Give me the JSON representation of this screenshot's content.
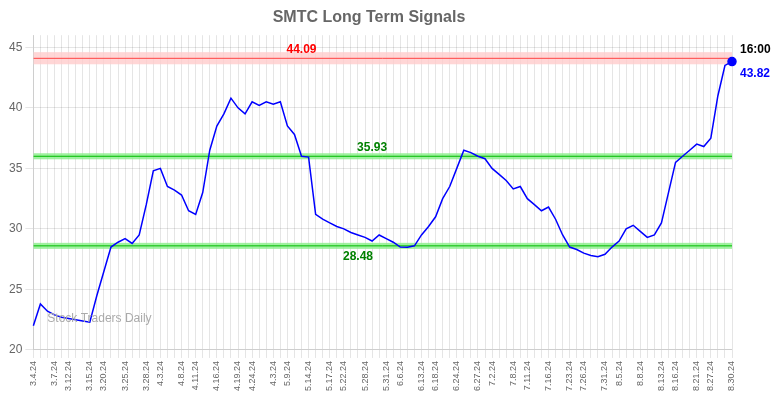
{
  "chart_data": {
    "type": "line",
    "title": "SMTC Long Term Signals",
    "categories": [
      "3.4.24",
      null,
      null,
      "3.7.24",
      null,
      "3.12.24",
      null,
      null,
      "3.15.24",
      null,
      "3.20.24",
      null,
      null,
      "3.25.24",
      null,
      null,
      "3.28.24",
      null,
      "4.3.24",
      null,
      null,
      "4.8.24",
      null,
      "4.11.24",
      null,
      null,
      "4.16.24",
      null,
      null,
      "4.19.24",
      null,
      "4.24.24",
      null,
      null,
      "4.3.24",
      null,
      "5.9.24",
      null,
      null,
      "5.14.24",
      null,
      null,
      "5.17.24",
      null,
      "5.22.24",
      null,
      null,
      "5.28.24",
      null,
      null,
      "5.31.24",
      null,
      "6.6.24",
      null,
      null,
      "6.13.24",
      null,
      "6.18.24",
      null,
      null,
      "6.24.24",
      null,
      null,
      "6.27.24",
      null,
      "7.2.24",
      null,
      null,
      "7.8.24",
      null,
      "7.11.24",
      null,
      null,
      "7.16.24",
      null,
      null,
      "7.23.24",
      null,
      "7.26.24",
      null,
      null,
      "7.31.24",
      null,
      "8.5.24",
      null,
      null,
      "8.8.24",
      null,
      null,
      "8.13.24",
      null,
      "8.16.24",
      null,
      null,
      "8.21.24",
      null,
      "8.27.24",
      null,
      null,
      "8.30.24"
    ],
    "values": [
      22.0,
      23.8,
      23.2,
      22.9,
      22.7,
      22.6,
      22.5,
      22.4,
      22.3,
      24.5,
      26.5,
      28.5,
      28.9,
      29.2,
      28.8,
      29.5,
      32.0,
      34.8,
      35.0,
      33.5,
      33.2,
      32.8,
      31.5,
      31.2,
      33.0,
      36.5,
      38.5,
      39.5,
      40.8,
      40.0,
      39.5,
      40.5,
      40.2,
      40.5,
      40.3,
      40.5,
      38.5,
      37.8,
      36.0,
      35.93,
      31.2,
      30.8,
      30.5,
      30.2,
      30.0,
      29.7,
      29.5,
      29.3,
      29.0,
      29.5,
      29.2,
      28.9,
      28.5,
      28.48,
      28.6,
      29.5,
      30.2,
      31.0,
      32.5,
      33.5,
      35.0,
      36.5,
      36.3,
      36.0,
      35.8,
      35.0,
      34.5,
      34.0,
      33.3,
      33.5,
      32.5,
      32.0,
      31.5,
      31.8,
      30.8,
      29.5,
      28.5,
      28.3,
      28.0,
      27.8,
      27.7,
      27.9,
      28.5,
      29.0,
      30.0,
      30.3,
      29.8,
      29.3,
      29.5,
      30.5,
      33.0,
      35.5,
      36.0,
      36.5,
      37.0,
      36.8,
      37.5,
      41.0,
      43.5,
      43.82
    ],
    "color": "blue",
    "ylim": [
      20,
      46
    ],
    "yticks": [
      20,
      25,
      30,
      35,
      40,
      45
    ],
    "grid": true,
    "bands": [
      {
        "from": 43.6,
        "to": 44.6,
        "color": "#ffcccc"
      },
      {
        "from": 35.75,
        "to": 36.25,
        "color": "#88ee88"
      },
      {
        "from": 28.35,
        "to": 28.85,
        "color": "#88ee88"
      }
    ],
    "lines": [
      {
        "y": 44.09,
        "color": "#ff4444"
      },
      {
        "y": 36.0,
        "color": "#00bb00"
      },
      {
        "y": 28.6,
        "color": "#00bb00"
      }
    ],
    "annotations": [
      {
        "text": "44.09",
        "x": 38,
        "y": 44.09,
        "color": "red"
      },
      {
        "text": "35.93",
        "x": 48,
        "y": 35.93,
        "color": "green"
      },
      {
        "text": "28.48",
        "x": 46,
        "y": 28.48,
        "color": "green"
      },
      {
        "text": "16:00",
        "x": 99,
        "y": 43.82,
        "color": "black"
      },
      {
        "text": "43.82",
        "x": 99,
        "y": 43.82,
        "color": "blue"
      }
    ],
    "watermark": "Stock Traders Daily"
  }
}
